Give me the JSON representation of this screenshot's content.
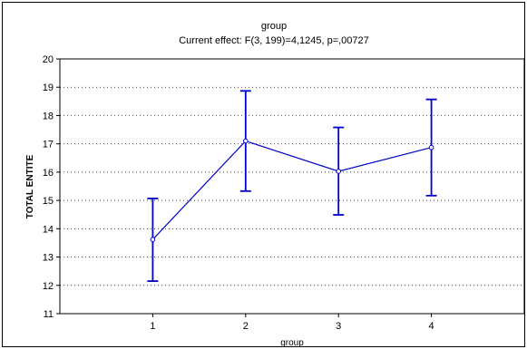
{
  "chart_data": {
    "type": "line",
    "title": "group",
    "subtitle": "Current effect: F(3, 199)=4,1245, p=,00727",
    "xlabel": "group",
    "ylabel": "TOTAL ENTITE",
    "categories": [
      "1",
      "2",
      "3",
      "4"
    ],
    "series": [
      {
        "values": [
          13.62,
          17.1,
          16.03,
          16.87
        ],
        "error_lower": [
          12.15,
          15.33,
          14.49,
          15.17
        ],
        "error_upper": [
          15.07,
          18.87,
          17.58,
          18.57
        ]
      }
    ],
    "ylim": [
      11,
      20
    ],
    "yticks": [
      11,
      12,
      13,
      14,
      15,
      16,
      17,
      18,
      19,
      20
    ],
    "grid": "horizontal dotted",
    "legend": "none",
    "colors": {
      "series": "#0000cc",
      "axis": "#000000",
      "grid": "#000000"
    }
  }
}
